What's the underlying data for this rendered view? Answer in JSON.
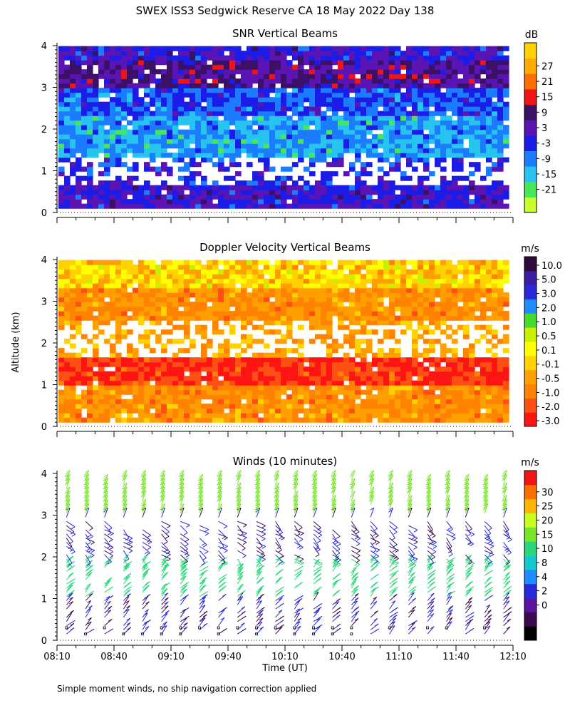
{
  "figure": {
    "title": "SWEX ISS3 Sedgwick Reserve CA  18 May 2022 Day 138",
    "footnote": "Simple moment winds, no ship navigation correction applied",
    "shared_ylabel": "Altitude (km)",
    "shared_xlabel": "Time (UT)",
    "x_ticks": [
      "08:10",
      "08:40",
      "09:10",
      "09:40",
      "10:10",
      "10:40",
      "11:10",
      "11:40",
      "12:10"
    ],
    "y_ticks": [
      "0",
      "1",
      "2",
      "3",
      "4"
    ]
  },
  "chart_data": [
    {
      "type": "heatmap",
      "title": "SNR Vertical Beams",
      "xlabel": "",
      "ylabel": "Altitude (km)",
      "xlim": [
        "08:10",
        "12:10"
      ],
      "ylim": [
        0,
        4
      ],
      "colorbar": {
        "unit": "dB",
        "ticks": [
          "27",
          "21",
          "15",
          "9",
          "3",
          "-3",
          "-9",
          "-15",
          "-21"
        ],
        "colors": [
          "#c8ff2a",
          "#46e85a",
          "#28c4f0",
          "#1c7cff",
          "#1c1ce8",
          "#5a14b4",
          "#3c1064",
          "#f01414",
          "#ff6e00",
          "#ffaa00",
          "#ffd200"
        ]
      },
      "layers": [
        {
          "alt_range": [
            0.1,
            0.6
          ],
          "dominant": "-3 to 3",
          "note": "strong echo, blue"
        },
        {
          "alt_range": [
            0.6,
            1.3
          ],
          "dominant": "missing",
          "note": "many gaps after 09:40"
        },
        {
          "alt_range": [
            1.3,
            2.3
          ],
          "dominant": "-15 to -9",
          "note": "weak echo, cyan/green"
        },
        {
          "alt_range": [
            2.3,
            2.9
          ],
          "dominant": "-9 to -3",
          "note": "cyan/blue"
        },
        {
          "alt_range": [
            2.9,
            3.6
          ],
          "dominant": "3 to 9",
          "note": "strong echo, purple"
        },
        {
          "alt_range": [
            3.6,
            3.95
          ],
          "dominant": "-3 to 3",
          "note": "blue"
        }
      ]
    },
    {
      "type": "heatmap",
      "title": "Doppler Velocity Vertical Beams",
      "xlabel": "",
      "ylabel": "Altitude (km)",
      "xlim": [
        "08:10",
        "12:10"
      ],
      "ylim": [
        0,
        4
      ],
      "colorbar": {
        "unit": "m/s",
        "ticks": [
          "10.0",
          "5.0",
          "3.0",
          "2.0",
          "1.0",
          "0.5",
          "0.1",
          "-0.1",
          "-0.5",
          "-1.0",
          "-2.0",
          "-3.0"
        ],
        "colors": [
          "#ff1414",
          "#ff5014",
          "#ff8200",
          "#ffa000",
          "#ffd200",
          "#ffff00",
          "#c8f000",
          "#46dc2d",
          "#1e8cff",
          "#2828dc",
          "#3c1ca0",
          "#300a3c"
        ]
      },
      "layers": [
        {
          "alt_range": [
            0.1,
            0.9
          ],
          "dominant": "-1.0 to -0.5",
          "note": "orange/yellow"
        },
        {
          "alt_range": [
            0.9,
            1.6
          ],
          "dominant": "-3.0 to -2.0",
          "note": "red/dark orange"
        },
        {
          "alt_range": [
            1.6,
            2.5
          ],
          "dominant": "missing / -1.0",
          "note": "orange with gaps"
        },
        {
          "alt_range": [
            2.5,
            3.3
          ],
          "dominant": "-1.0 to -0.5",
          "note": "orange"
        },
        {
          "alt_range": [
            3.3,
            3.95
          ],
          "dominant": "-0.5 to 0.1",
          "note": "yellow/green"
        }
      ]
    },
    {
      "type": "scatter",
      "title": "Winds (10 minutes)",
      "xlabel": "Time (UT)",
      "ylabel": "Altitude (km)",
      "xlim": [
        "08:10",
        "12:10"
      ],
      "ylim": [
        0,
        4
      ],
      "colorbar": {
        "unit": "m/s",
        "ticks": [
          "30",
          "25",
          "20",
          "15",
          "10",
          "8",
          "4",
          "2",
          "0"
        ],
        "colors": [
          "#000000",
          "#3c0a50",
          "#5a14a0",
          "#2828dc",
          "#1e8cff",
          "#14c8d2",
          "#28d87a",
          "#78e628",
          "#c8ff1e",
          "#ffb400",
          "#ff6e00",
          "#f51414"
        ]
      },
      "profiles_at": [
        "08:15",
        "08:25",
        "08:35",
        "08:45",
        "08:55",
        "09:05",
        "09:15",
        "09:25",
        "09:35",
        "09:45",
        "09:55",
        "10:05",
        "10:15",
        "10:25",
        "10:35",
        "10:45",
        "10:55",
        "11:05",
        "11:15",
        "11:25",
        "11:35",
        "11:45",
        "11:55",
        "12:05"
      ],
      "speed_by_altitude": [
        {
          "alt_range": [
            0.1,
            1.0
          ],
          "speed": "2 to 8"
        },
        {
          "alt_range": [
            1.0,
            2.0
          ],
          "speed": "10 to 15"
        },
        {
          "alt_range": [
            2.0,
            3.0
          ],
          "speed": "2 to 8"
        },
        {
          "alt_range": [
            3.0,
            4.0
          ],
          "speed": "15 to 20"
        }
      ]
    }
  ]
}
